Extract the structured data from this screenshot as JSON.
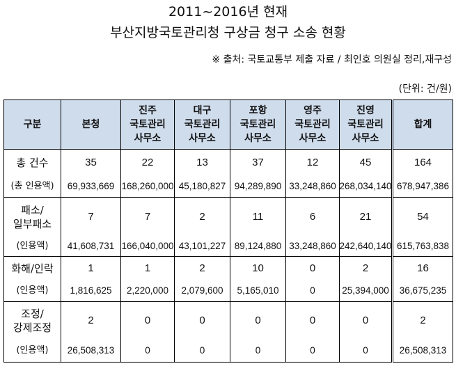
{
  "title": {
    "line1": "2011~2016년 현재",
    "line2": "부산지방국토관리청 구상금 청구 소송 현황"
  },
  "source_note": "※ 출처: 국토교통부 제출 자료 / 최인호 의원실 정리,재구성",
  "unit_note": "(단위: 건/원)",
  "table": {
    "headers": [
      {
        "lines": [
          "구분"
        ]
      },
      {
        "lines": [
          "본청"
        ]
      },
      {
        "lines": [
          "진주",
          "국토관리",
          "사무소"
        ]
      },
      {
        "lines": [
          "대구",
          "국토관리",
          "사무소"
        ]
      },
      {
        "lines": [
          "포항",
          "국토관리",
          "사무소"
        ]
      },
      {
        "lines": [
          "영주",
          "국토관리",
          "사무소"
        ]
      },
      {
        "lines": [
          "진영",
          "국토관리",
          "사무소"
        ]
      },
      {
        "lines": [
          "합계"
        ]
      }
    ],
    "header_color": "#cfdcec",
    "rows": [
      {
        "label": [
          "총 건수"
        ],
        "sub_label": "(총 인용액)",
        "counts": [
          "35",
          "22",
          "13",
          "37",
          "12",
          "45",
          "164"
        ],
        "amounts": [
          "69,933,669",
          "168,260,000",
          "45,180,827",
          "94,289,890",
          "33,248,860",
          "268,034,140",
          "678,947,386"
        ]
      },
      {
        "label": [
          "패소/",
          "일부패소"
        ],
        "sub_label": "(인용액)",
        "counts": [
          "7",
          "7",
          "2",
          "11",
          "6",
          "21",
          "54"
        ],
        "amounts": [
          "41,608,731",
          "166,040,000",
          "43,101,227",
          "89,124,880",
          "33,248,860",
          "242,640,140",
          "615,763,838"
        ]
      },
      {
        "label": [
          "화해/인락"
        ],
        "sub_label": "(인용액)",
        "counts": [
          "1",
          "1",
          "2",
          "10",
          "0",
          "2",
          "16"
        ],
        "amounts": [
          "1,816,625",
          "2,220,000",
          "2,079,600",
          "5,165,010",
          "0",
          "25,394,000",
          "36,675,235"
        ]
      },
      {
        "label": [
          "조정/",
          "강제조정"
        ],
        "sub_label": "(인용액)",
        "counts": [
          "2",
          "0",
          "0",
          "0",
          "0",
          "0",
          "2"
        ],
        "amounts": [
          "26,508,313",
          "0",
          "0",
          "0",
          "0",
          "0",
          "26,508,313"
        ]
      }
    ]
  }
}
